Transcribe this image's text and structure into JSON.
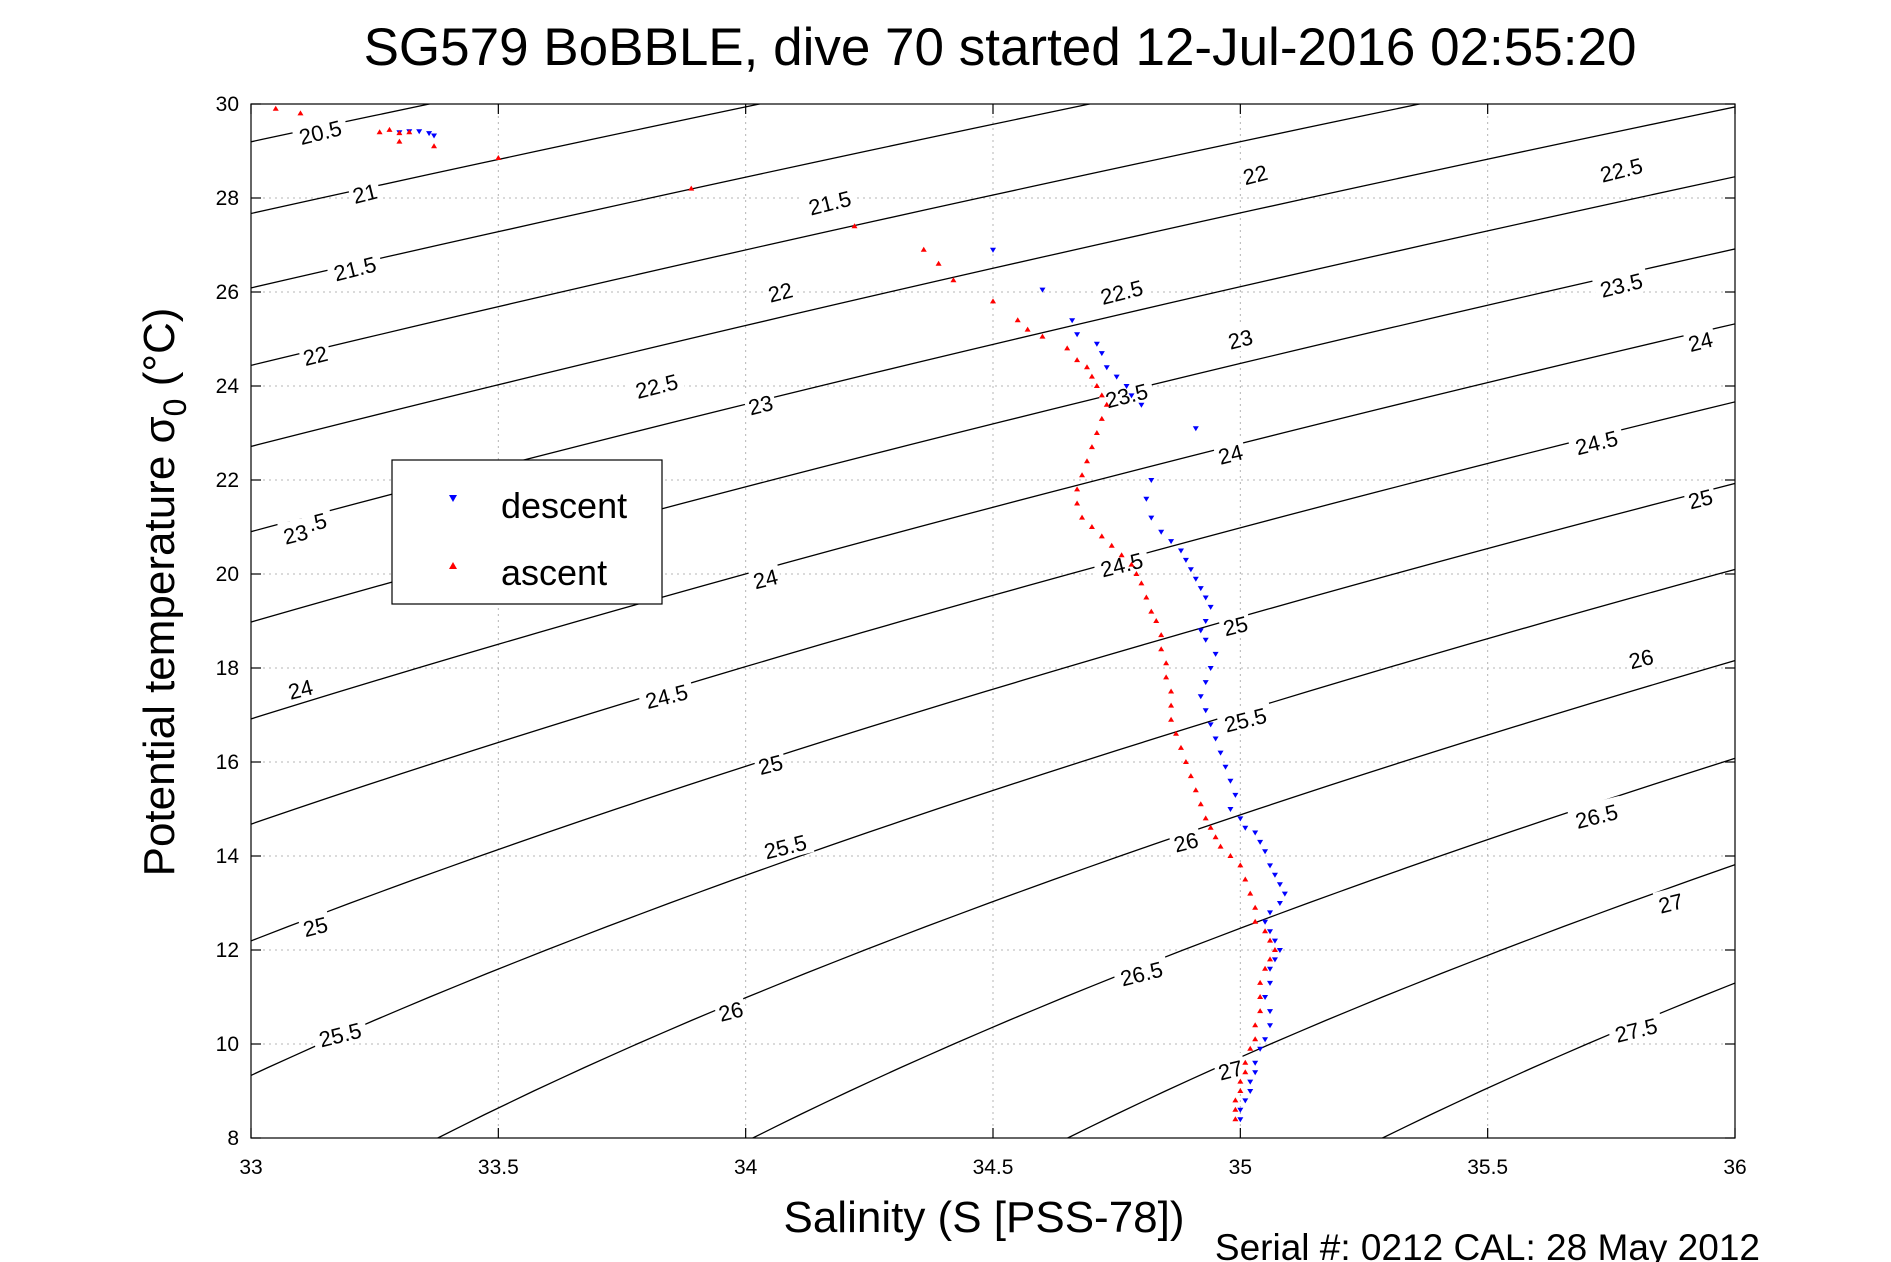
{
  "title": "SG579 BoBBLE, dive 70 started 12-Jul-2016 02:55:20",
  "footer": "Serial #: 0212  CAL: 28 May 2012",
  "chart_data": {
    "type": "scatter",
    "xlabel": "Salinity (S [PSS-78])",
    "ylabel": "Potential temperature σ",
    "ylabel_subscript": "0",
    "ylabel_unit": " (°C)",
    "xlim": [
      33,
      36
    ],
    "ylim": [
      8,
      30
    ],
    "xticks": [
      33,
      33.5,
      34,
      34.5,
      35,
      35.5,
      36
    ],
    "xtick_labels": [
      "33",
      "33.5",
      "34",
      "34.5",
      "35",
      "35.5",
      "36"
    ],
    "yticks": [
      8,
      10,
      12,
      14,
      16,
      18,
      20,
      22,
      24,
      26,
      28,
      30
    ],
    "ytick_labels": [
      "8",
      "10",
      "12",
      "14",
      "16",
      "18",
      "20",
      "22",
      "24",
      "26",
      "28",
      "30"
    ],
    "grid": true,
    "legend": {
      "position": "middle-left",
      "entries": [
        "descent",
        "ascent"
      ]
    },
    "colors": {
      "descent": "#0000ff",
      "ascent": "#ff0000",
      "contour": "#000000",
      "grid": "#b4b4b4"
    },
    "contour_levels": [
      20.5,
      21,
      21.5,
      22,
      22.5,
      23,
      23.5,
      24,
      24.5,
      25,
      25.5,
      26,
      26.5,
      27,
      27.5
    ],
    "contour_labels": [
      {
        "text": "20.5",
        "s": 33.14,
        "t": 29.4
      },
      {
        "text": "21",
        "s": 33.23,
        "t": 28.1
      },
      {
        "text": "21.5",
        "s": 33.21,
        "t": 26.5
      },
      {
        "text": "22",
        "s": 33.13,
        "t": 24.65
      },
      {
        "text": "22.5",
        "s": 33.11,
        "t": 21.05
      },
      {
        "text": "23",
        "s": 33.09,
        "t": 20.85
      },
      {
        "text": "24",
        "s": 33.1,
        "t": 17.55
      },
      {
        "text": "25",
        "s": 33.13,
        "t": 12.5
      },
      {
        "text": "25.5",
        "s": 33.18,
        "t": 10.2
      },
      {
        "text": "21.5",
        "s": 34.17,
        "t": 27.9
      },
      {
        "text": "22",
        "s": 34.07,
        "t": 26.0
      },
      {
        "text": "22.5",
        "s": 33.82,
        "t": 24.0
      },
      {
        "text": "23",
        "s": 34.03,
        "t": 23.6
      },
      {
        "text": "24",
        "s": 34.04,
        "t": 19.9
      },
      {
        "text": "24.5",
        "s": 33.84,
        "t": 17.4
      },
      {
        "text": "25",
        "s": 34.05,
        "t": 15.95
      },
      {
        "text": "25.5",
        "s": 34.08,
        "t": 14.2
      },
      {
        "text": "26",
        "s": 33.97,
        "t": 10.7
      },
      {
        "text": "22",
        "s": 35.03,
        "t": 28.5
      },
      {
        "text": "22.5",
        "s": 34.76,
        "t": 26.0
      },
      {
        "text": "23",
        "s": 35.0,
        "t": 25.0
      },
      {
        "text": "23.5",
        "s": 34.77,
        "t": 23.8
      },
      {
        "text": "24",
        "s": 34.98,
        "t": 22.55
      },
      {
        "text": "24.5",
        "s": 34.76,
        "t": 20.2
      },
      {
        "text": "25",
        "s": 34.99,
        "t": 18.9
      },
      {
        "text": "25.5",
        "s": 35.01,
        "t": 16.9
      },
      {
        "text": "26",
        "s": 34.89,
        "t": 14.3
      },
      {
        "text": "26.5",
        "s": 34.8,
        "t": 11.5
      },
      {
        "text": "27",
        "s": 34.98,
        "t": 9.45
      },
      {
        "text": "22.5",
        "s": 35.77,
        "t": 28.6
      },
      {
        "text": "23.5",
        "s": 35.77,
        "t": 26.15
      },
      {
        "text": "24",
        "s": 35.93,
        "t": 24.95
      },
      {
        "text": "24.5",
        "s": 35.72,
        "t": 22.8
      },
      {
        "text": "25",
        "s": 35.93,
        "t": 21.6
      },
      {
        "text": "26",
        "s": 35.81,
        "t": 18.2
      },
      {
        "text": "26.5",
        "s": 35.72,
        "t": 14.85
      },
      {
        "text": "27",
        "s": 35.87,
        "t": 13.0
      },
      {
        "text": "27.5",
        "s": 35.8,
        "t": 10.3
      }
    ],
    "series": [
      {
        "name": "descent",
        "marker": "triangle-down",
        "points": [
          [
            33.3,
            29.4
          ],
          [
            33.32,
            29.42
          ],
          [
            33.34,
            29.42
          ],
          [
            33.36,
            29.38
          ],
          [
            33.37,
            29.33
          ],
          [
            34.5,
            26.9
          ],
          [
            34.6,
            26.05
          ],
          [
            34.66,
            25.4
          ],
          [
            34.67,
            25.1
          ],
          [
            34.71,
            24.9
          ],
          [
            34.72,
            24.7
          ],
          [
            34.73,
            24.4
          ],
          [
            34.75,
            24.2
          ],
          [
            34.77,
            24.0
          ],
          [
            34.78,
            23.8
          ],
          [
            34.8,
            23.6
          ],
          [
            34.91,
            23.1
          ],
          [
            34.82,
            22.0
          ],
          [
            34.81,
            21.6
          ],
          [
            34.82,
            21.2
          ],
          [
            34.84,
            20.9
          ],
          [
            34.86,
            20.7
          ],
          [
            34.88,
            20.5
          ],
          [
            34.89,
            20.3
          ],
          [
            34.9,
            20.1
          ],
          [
            34.91,
            19.9
          ],
          [
            34.92,
            19.7
          ],
          [
            34.93,
            19.5
          ],
          [
            34.94,
            19.3
          ],
          [
            34.93,
            19.0
          ],
          [
            34.92,
            18.8
          ],
          [
            34.93,
            18.6
          ],
          [
            34.95,
            18.3
          ],
          [
            34.94,
            18.0
          ],
          [
            34.93,
            17.7
          ],
          [
            34.92,
            17.4
          ],
          [
            34.93,
            17.1
          ],
          [
            34.94,
            16.8
          ],
          [
            34.95,
            16.5
          ],
          [
            34.96,
            16.2
          ],
          [
            34.97,
            15.9
          ],
          [
            34.98,
            15.6
          ],
          [
            34.99,
            15.3
          ],
          [
            34.98,
            15.0
          ],
          [
            35.0,
            14.8
          ],
          [
            35.01,
            14.6
          ],
          [
            35.03,
            14.5
          ],
          [
            35.04,
            14.3
          ],
          [
            35.05,
            14.1
          ],
          [
            35.06,
            13.8
          ],
          [
            35.07,
            13.6
          ],
          [
            35.08,
            13.4
          ],
          [
            35.09,
            13.2
          ],
          [
            35.08,
            13.0
          ],
          [
            35.06,
            12.8
          ],
          [
            35.05,
            12.6
          ],
          [
            35.06,
            12.4
          ],
          [
            35.07,
            12.2
          ],
          [
            35.08,
            12.0
          ],
          [
            35.07,
            11.8
          ],
          [
            35.06,
            11.6
          ],
          [
            35.06,
            11.3
          ],
          [
            35.05,
            11.0
          ],
          [
            35.06,
            10.7
          ],
          [
            35.06,
            10.4
          ],
          [
            35.05,
            10.1
          ],
          [
            35.04,
            9.9
          ],
          [
            35.03,
            9.6
          ],
          [
            35.03,
            9.4
          ],
          [
            35.02,
            9.2
          ],
          [
            35.02,
            9.0
          ],
          [
            35.01,
            8.8
          ],
          [
            35.0,
            8.6
          ],
          [
            35.0,
            8.4
          ]
        ]
      },
      {
        "name": "ascent",
        "marker": "triangle-up",
        "points": [
          [
            33.05,
            29.9
          ],
          [
            33.1,
            29.8
          ],
          [
            33.26,
            29.4
          ],
          [
            33.28,
            29.45
          ],
          [
            33.3,
            29.38
          ],
          [
            33.32,
            29.4
          ],
          [
            33.3,
            29.2
          ],
          [
            33.37,
            29.1
          ],
          [
            33.5,
            28.85
          ],
          [
            33.89,
            28.2
          ],
          [
            34.22,
            27.4
          ],
          [
            34.36,
            26.9
          ],
          [
            34.39,
            26.6
          ],
          [
            34.42,
            26.25
          ],
          [
            34.5,
            25.8
          ],
          [
            34.55,
            25.4
          ],
          [
            34.57,
            25.2
          ],
          [
            34.6,
            25.05
          ],
          [
            34.65,
            24.8
          ],
          [
            34.67,
            24.55
          ],
          [
            34.69,
            24.4
          ],
          [
            34.7,
            24.2
          ],
          [
            34.71,
            24.0
          ],
          [
            34.72,
            23.8
          ],
          [
            34.73,
            23.6
          ],
          [
            34.72,
            23.3
          ],
          [
            34.71,
            23.0
          ],
          [
            34.7,
            22.7
          ],
          [
            34.69,
            22.4
          ],
          [
            34.68,
            22.1
          ],
          [
            34.67,
            21.8
          ],
          [
            34.67,
            21.5
          ],
          [
            34.68,
            21.2
          ],
          [
            34.7,
            21.0
          ],
          [
            34.72,
            20.8
          ],
          [
            34.74,
            20.6
          ],
          [
            34.76,
            20.4
          ],
          [
            34.78,
            20.2
          ],
          [
            34.79,
            20.0
          ],
          [
            34.8,
            19.8
          ],
          [
            34.81,
            19.5
          ],
          [
            34.82,
            19.2
          ],
          [
            34.83,
            19.0
          ],
          [
            34.84,
            18.7
          ],
          [
            34.84,
            18.4
          ],
          [
            34.85,
            18.1
          ],
          [
            34.85,
            17.8
          ],
          [
            34.86,
            17.5
          ],
          [
            34.86,
            17.2
          ],
          [
            34.86,
            16.9
          ],
          [
            34.87,
            16.6
          ],
          [
            34.88,
            16.3
          ],
          [
            34.89,
            16.0
          ],
          [
            34.9,
            15.7
          ],
          [
            34.91,
            15.4
          ],
          [
            34.92,
            15.1
          ],
          [
            34.93,
            14.8
          ],
          [
            34.94,
            14.6
          ],
          [
            34.95,
            14.4
          ],
          [
            34.96,
            14.2
          ],
          [
            34.98,
            14.0
          ],
          [
            35.0,
            13.8
          ],
          [
            35.01,
            13.5
          ],
          [
            35.02,
            13.2
          ],
          [
            35.03,
            12.9
          ],
          [
            35.03,
            12.6
          ],
          [
            35.05,
            12.4
          ],
          [
            35.06,
            12.2
          ],
          [
            35.07,
            12.0
          ],
          [
            35.06,
            11.8
          ],
          [
            35.05,
            11.6
          ],
          [
            35.04,
            11.3
          ],
          [
            35.04,
            11.0
          ],
          [
            35.04,
            10.7
          ],
          [
            35.03,
            10.4
          ],
          [
            35.03,
            10.1
          ],
          [
            35.02,
            9.9
          ],
          [
            35.01,
            9.6
          ],
          [
            35.01,
            9.4
          ],
          [
            35.0,
            9.2
          ],
          [
            35.0,
            9.0
          ],
          [
            34.99,
            8.8
          ],
          [
            34.99,
            8.6
          ],
          [
            34.99,
            8.4
          ]
        ]
      }
    ]
  }
}
